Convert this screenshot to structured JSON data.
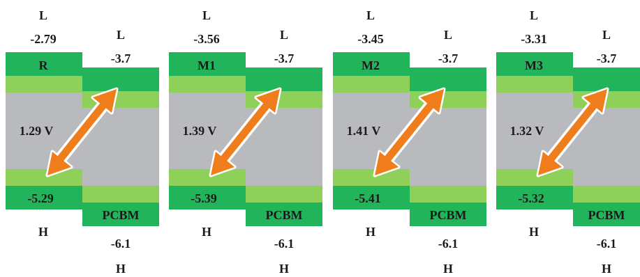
{
  "colors": {
    "dark_green": "#22b45a",
    "light_green": "#8fd05a",
    "gray": "#b9babd",
    "arrow": "#ef7d1c"
  },
  "panels": [
    {
      "donor_label": "R",
      "donor_lumo_letter": "L",
      "donor_lumo_value": "-2.79",
      "donor_homo_value": "-5.29",
      "donor_homo_letter": "H",
      "acceptor_label": "PCBM",
      "acceptor_lumo_letter": "L",
      "acceptor_lumo_value": "-3.7",
      "acceptor_homo_value": "-6.1",
      "acceptor_homo_letter": "H",
      "voc": "1.29 V"
    },
    {
      "donor_label": "M1",
      "donor_lumo_letter": "L",
      "donor_lumo_value": "-3.56",
      "donor_homo_value": "-5.39",
      "donor_homo_letter": "H",
      "acceptor_label": "PCBM",
      "acceptor_lumo_letter": "L",
      "acceptor_lumo_value": "-3.7",
      "acceptor_homo_value": "-6.1",
      "acceptor_homo_letter": "H",
      "voc": "1.39 V"
    },
    {
      "donor_label": "M2",
      "donor_lumo_letter": "L",
      "donor_lumo_value": "-3.45",
      "donor_homo_value": "-5.41",
      "donor_homo_letter": "H",
      "acceptor_label": "PCBM",
      "acceptor_lumo_letter": "L",
      "acceptor_lumo_value": "-3.7",
      "acceptor_homo_value": "-6.1",
      "acceptor_homo_letter": "H",
      "voc": "1.41 V"
    },
    {
      "donor_label": "M3",
      "donor_lumo_letter": "L",
      "donor_lumo_value": "-3.31",
      "donor_homo_value": "-5.32",
      "donor_homo_letter": "H",
      "acceptor_label": "PCBM",
      "acceptor_lumo_letter": "L",
      "acceptor_lumo_value": "-3.7",
      "acceptor_homo_value": "-6.1",
      "acceptor_homo_letter": "H",
      "voc": "1.32 V"
    }
  ]
}
